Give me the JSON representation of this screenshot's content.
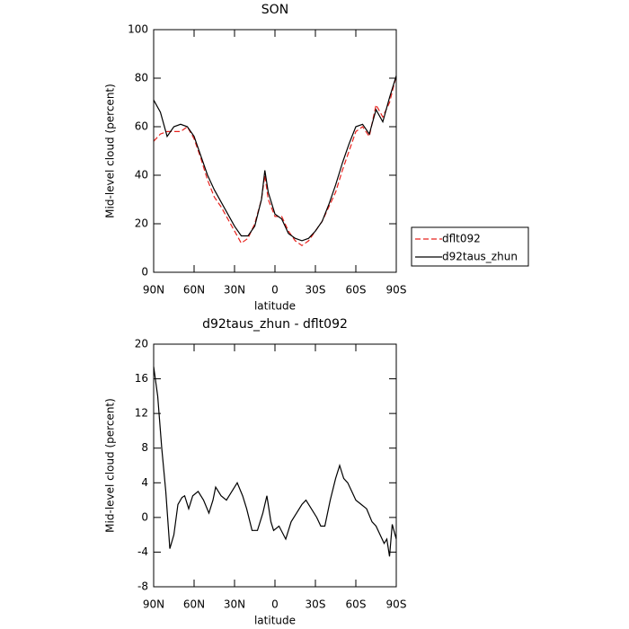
{
  "chart_data": [
    {
      "type": "line",
      "title": "SON",
      "xlabel": "latitude",
      "ylabel": "Mid-level cloud (percent)",
      "x": [
        90,
        85,
        80,
        75,
        70,
        65,
        60,
        55,
        50,
        45,
        40,
        35,
        30,
        25,
        20,
        15,
        10,
        7.5,
        5,
        0,
        -5,
        -10,
        -15,
        -20,
        -25,
        -30,
        -35,
        -40,
        -45,
        -50,
        -55,
        -60,
        -65,
        -70,
        -75,
        -80,
        -85,
        -90
      ],
      "series": [
        {
          "name": "dflt092",
          "color": "#e8231e",
          "linestyle": "dashed",
          "values": [
            54,
            57,
            58,
            58,
            58,
            60,
            55,
            47,
            38,
            31,
            27,
            22,
            17,
            12,
            14,
            20,
            30,
            40,
            30,
            23,
            23,
            17,
            13,
            11,
            13,
            17,
            21,
            27,
            33,
            42,
            50,
            58,
            60,
            56,
            69,
            64,
            70,
            81
          ]
        },
        {
          "name": "d92taus_zhun",
          "color": "#000000",
          "linestyle": "solid",
          "values": [
            71,
            66,
            56,
            60,
            61,
            60,
            56,
            48,
            40,
            34,
            29,
            24,
            19,
            15,
            15,
            19,
            30,
            42,
            33,
            24,
            22,
            16,
            14,
            13,
            14,
            17,
            21,
            28,
            36,
            45,
            53,
            60,
            61,
            57,
            67,
            62,
            72,
            81
          ]
        }
      ],
      "xlim": [
        90,
        -90
      ],
      "xticks": [
        {
          "value": 90,
          "label": "90N"
        },
        {
          "value": 60,
          "label": "60N"
        },
        {
          "value": 30,
          "label": "30N"
        },
        0,
        {
          "value": -30,
          "label": "30S"
        },
        {
          "value": -60,
          "label": "60S"
        },
        {
          "value": -90,
          "label": "90S"
        }
      ],
      "ylim": [
        0,
        100
      ],
      "yticks": [
        0,
        20,
        40,
        60,
        80,
        100
      ],
      "legend": "right"
    },
    {
      "type": "line",
      "title": "d92taus_zhun - dflt092",
      "xlabel": "latitude",
      "ylabel": "Mid-level cloud (percent)",
      "x": [
        90,
        87,
        84,
        81,
        78,
        75,
        72,
        69,
        67,
        64,
        61,
        57,
        53,
        49,
        46,
        44,
        40,
        36,
        32,
        28,
        24,
        21,
        17,
        13,
        9,
        6,
        3,
        1,
        -3,
        -8,
        -12,
        -16,
        -20,
        -23,
        -27,
        -31,
        -34,
        -37,
        -41,
        -45,
        -48,
        -51,
        -54,
        -57,
        -60,
        -64,
        -68,
        -72,
        -75,
        -78,
        -81,
        -83,
        -85,
        -87,
        -90
      ],
      "series": [
        {
          "color": "#000000",
          "linestyle": "solid",
          "values": [
            17.4,
            14,
            8,
            3,
            -3.6,
            -2,
            1.5,
            2.3,
            2.5,
            1,
            2.5,
            3,
            2,
            0.5,
            2,
            3.5,
            2.5,
            2,
            3,
            4,
            2.5,
            1,
            -1.5,
            -1.5,
            0.5,
            2.5,
            -0.5,
            -1.5,
            -1,
            -2.5,
            -0.5,
            0.5,
            1.5,
            2,
            1,
            0,
            -1,
            -1,
            2,
            4.5,
            6,
            4.5,
            4,
            3,
            2,
            1.5,
            1,
            -0.5,
            -1,
            -2,
            -3,
            -2.5,
            -4.5,
            -0.8,
            -2.5
          ]
        }
      ],
      "xlim": [
        90,
        -90
      ],
      "xticks": [
        {
          "value": 90,
          "label": "90N"
        },
        {
          "value": 60,
          "label": "60N"
        },
        {
          "value": 30,
          "label": "30N"
        },
        0,
        {
          "value": -30,
          "label": "30S"
        },
        {
          "value": -60,
          "label": "60S"
        },
        {
          "value": -90,
          "label": "90S"
        }
      ],
      "ylim": [
        -8,
        20
      ],
      "yticks": [
        -8,
        -4,
        0,
        4,
        8,
        12,
        16,
        20
      ]
    }
  ]
}
